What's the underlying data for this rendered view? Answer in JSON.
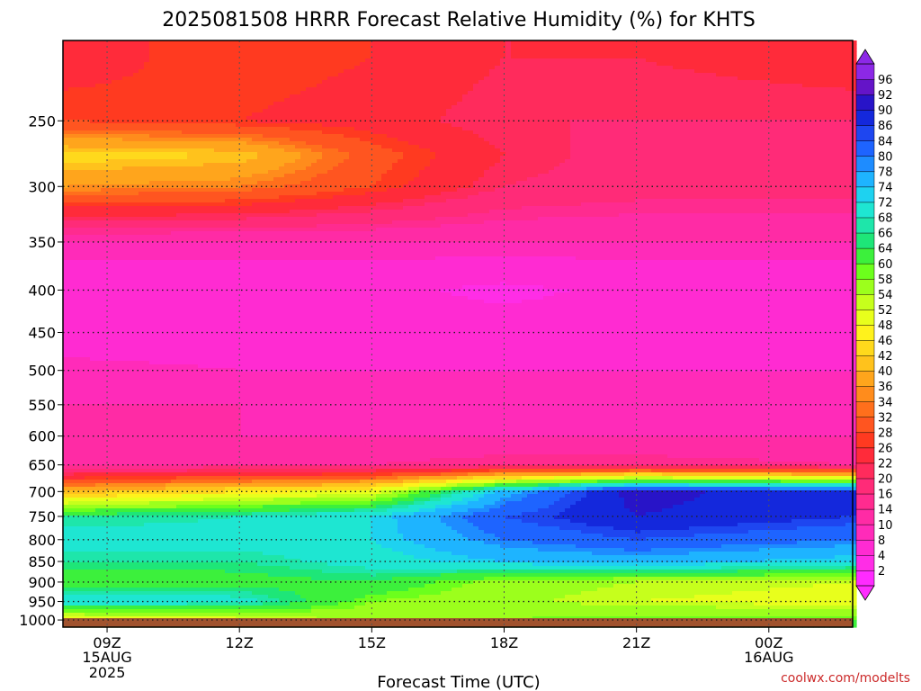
{
  "chart_data": {
    "type": "heatmap",
    "title": "2025081508 HRRR Forecast Relative Humidity (%) for KHTS",
    "xlabel": "Forecast Time (UTC)",
    "ylabel": "",
    "credit": "coolwx.com/modelts",
    "x_range_hours_utc": [
      8.0,
      25.9
    ],
    "x_ticks": [
      {
        "hour": 9,
        "label": "09Z",
        "sub1": "15AUG",
        "sub2": "2025"
      },
      {
        "hour": 12,
        "label": "12Z",
        "sub1": "",
        "sub2": ""
      },
      {
        "hour": 15,
        "label": "15Z",
        "sub1": "",
        "sub2": ""
      },
      {
        "hour": 18,
        "label": "18Z",
        "sub1": "",
        "sub2": ""
      },
      {
        "hour": 21,
        "label": "21Z",
        "sub1": "",
        "sub2": ""
      },
      {
        "hour": 24,
        "label": "00Z",
        "sub1": "16AUG",
        "sub2": ""
      }
    ],
    "y_scale": "log-pressure (inverted)",
    "y_range_hpa": [
      1020,
      200
    ],
    "y_ticks": [
      250,
      300,
      350,
      400,
      450,
      500,
      550,
      600,
      650,
      700,
      750,
      800,
      850,
      900,
      950,
      1000
    ],
    "grid": true,
    "ground_level_hpa": 995,
    "colorbar": {
      "levels": [
        2,
        4,
        8,
        10,
        14,
        16,
        20,
        22,
        26,
        28,
        32,
        34,
        36,
        40,
        42,
        46,
        48,
        52,
        54,
        58,
        60,
        64,
        66,
        68,
        72,
        74,
        78,
        80,
        84,
        86,
        90,
        92,
        96
      ],
      "colors": [
        "#ff2bff",
        "#ff2de6",
        "#ff2bd2",
        "#ff2bb9",
        "#ff2ba5",
        "#ff2b8f",
        "#ff2b78",
        "#ff2b5c",
        "#ff2b3a",
        "#ff3a20",
        "#ff5520",
        "#ff6f1c",
        "#ff8c1c",
        "#ffa51c",
        "#ffc21c",
        "#ffd91c",
        "#fff21c",
        "#e8ff1c",
        "#c6ff1c",
        "#9cff1c",
        "#6cff1c",
        "#3cf03c",
        "#1ee678",
        "#1ee6aa",
        "#1ee6d2",
        "#1ed2f0",
        "#1eb4ff",
        "#1e8cff",
        "#1e64ff",
        "#1e46f0",
        "#1428dc",
        "#2814c8",
        "#6414c8",
        "#8c28e6"
      ],
      "labels": [
        "96",
        "92",
        "90",
        "86",
        "84",
        "80",
        "78",
        "74",
        "72",
        "68",
        "66",
        "64",
        "60",
        "58",
        "54",
        "52",
        "48",
        "46",
        "42",
        "40",
        "36",
        "34",
        "32",
        "28",
        "26",
        "22",
        "20",
        "16",
        "14",
        "10",
        "8",
        "4",
        "2"
      ]
    },
    "humidity_profile": [
      {
        "p_hpa": 1000,
        "rh": [
          46,
          50,
          55,
          58,
          60,
          60
        ]
      },
      {
        "p_hpa": 950,
        "rh": [
          72,
          70,
          58,
          55,
          52,
          50
        ]
      },
      {
        "p_hpa": 900,
        "rh": [
          60,
          62,
          64,
          56,
          54,
          52
        ]
      },
      {
        "p_hpa": 850,
        "rh": [
          66,
          66,
          70,
          74,
          76,
          72
        ]
      },
      {
        "p_hpa": 800,
        "rh": [
          70,
          70,
          72,
          80,
          84,
          80
        ]
      },
      {
        "p_hpa": 750,
        "rh": [
          66,
          68,
          72,
          84,
          90,
          86
        ]
      },
      {
        "p_hpa": 700,
        "rh": [
          40,
          46,
          50,
          76,
          92,
          86
        ]
      },
      {
        "p_hpa": 650,
        "rh": [
          12,
          14,
          14,
          16,
          16,
          14
        ]
      },
      {
        "p_hpa": 600,
        "rh": [
          10,
          10,
          10,
          10,
          10,
          10
        ]
      },
      {
        "p_hpa": 550,
        "rh": [
          10,
          10,
          9,
          9,
          9,
          9
        ]
      },
      {
        "p_hpa": 500,
        "rh": [
          9,
          8,
          8,
          8,
          8,
          8
        ]
      },
      {
        "p_hpa": 450,
        "rh": [
          6,
          6,
          6,
          6,
          6,
          6
        ]
      },
      {
        "p_hpa": 400,
        "rh": [
          5,
          5,
          5,
          3,
          5,
          5
        ]
      },
      {
        "p_hpa": 350,
        "rh": [
          10,
          10,
          10,
          10,
          10,
          10
        ]
      },
      {
        "p_hpa": 300,
        "rh": [
          36,
          34,
          28,
          20,
          18,
          18
        ]
      },
      {
        "p_hpa": 275,
        "rh": [
          44,
          42,
          30,
          22,
          18,
          18
        ]
      },
      {
        "p_hpa": 250,
        "rh": [
          28,
          26,
          24,
          20,
          20,
          20
        ]
      },
      {
        "p_hpa": 210,
        "rh": [
          24,
          28,
          26,
          22,
          22,
          24
        ]
      }
    ],
    "profile_hours_utc": [
      8,
      12,
      15,
      18,
      21,
      25.9
    ]
  }
}
